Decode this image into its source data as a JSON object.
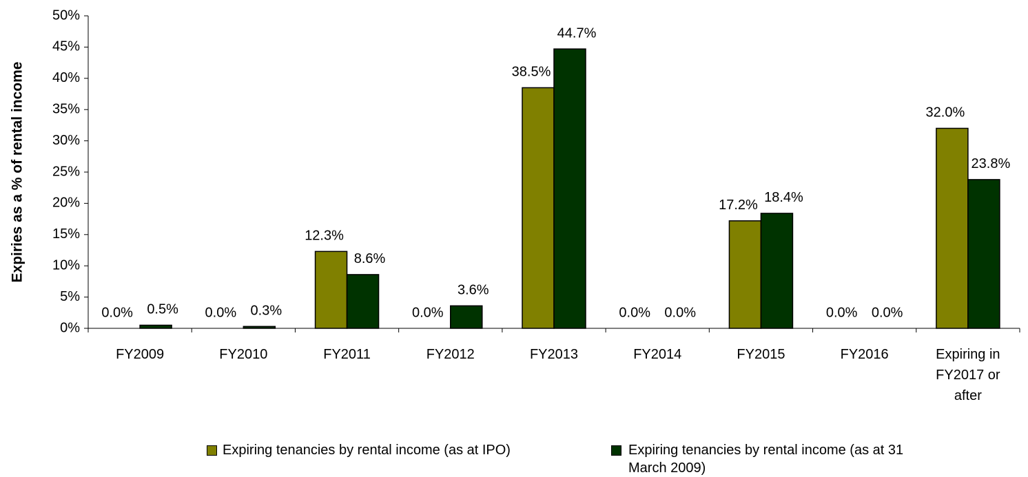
{
  "chart_data": {
    "type": "bar",
    "y_label": "Expiries as a % of rental income",
    "categories": [
      "FY2009",
      "FY2010",
      "FY2011",
      "FY2012",
      "FY2013",
      "FY2014",
      "FY2015",
      "FY2016",
      "Expiring in FY2017 or after"
    ],
    "series": [
      {
        "name": "Expiring tenancies by rental income (as at IPO)",
        "color": "#808000",
        "values": [
          0.0,
          0.0,
          12.3,
          0.0,
          38.5,
          0.0,
          17.2,
          0.0,
          32.0
        ],
        "value_labels": [
          "0.0%",
          "0.0%",
          "12.3%",
          "0.0%",
          "38.5%",
          "0.0%",
          "17.2%",
          "0.0%",
          "32.0%"
        ]
      },
      {
        "name": "Expiring tenancies by rental income (as at 31 March 2009)",
        "color": "#003300",
        "values": [
          0.5,
          0.3,
          8.6,
          3.6,
          44.7,
          0.0,
          18.4,
          0.0,
          23.8
        ],
        "value_labels": [
          "0.5%",
          "0.3%",
          "8.6%",
          "3.6%",
          "44.7%",
          "0.0%",
          "18.4%",
          "0.0%",
          "23.8%"
        ]
      }
    ],
    "ylim": [
      0,
      50
    ],
    "yticks": [
      {
        "value": 0,
        "label": "0%"
      },
      {
        "value": 5,
        "label": "5%"
      },
      {
        "value": 10,
        "label": "10%"
      },
      {
        "value": 15,
        "label": "15%"
      },
      {
        "value": 20,
        "label": "20%"
      },
      {
        "value": 25,
        "label": "25%"
      },
      {
        "value": 30,
        "label": "30%"
      },
      {
        "value": 35,
        "label": "35%"
      },
      {
        "value": 40,
        "label": "40%"
      },
      {
        "value": 45,
        "label": "45%"
      },
      {
        "value": 50,
        "label": "50%"
      }
    ],
    "grid": false,
    "legend": "bottom"
  }
}
